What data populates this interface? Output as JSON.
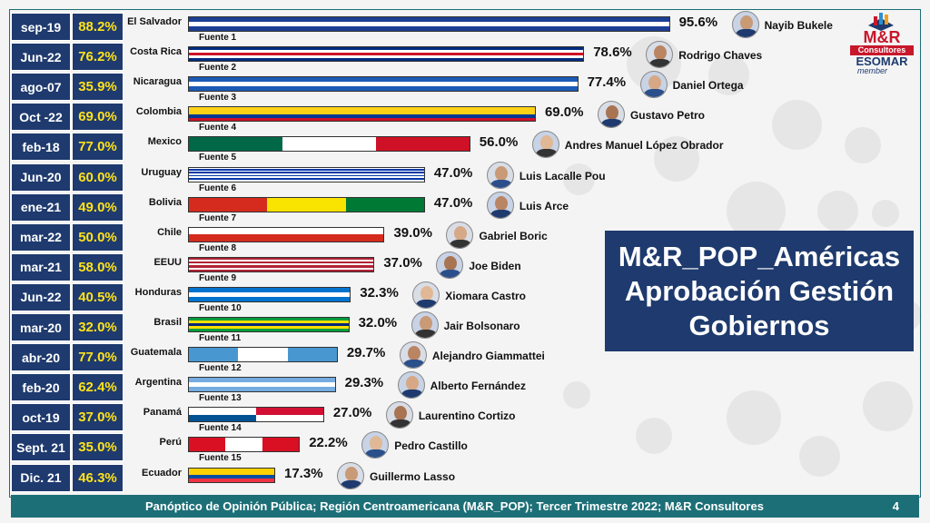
{
  "title_lines": [
    "M&R_POP_Américas",
    "Aprobación Gestión",
    "Gobiernos"
  ],
  "footer_text": "Panóptico de Opinión Pública; Región Centroamericana (M&R_POP); Tercer Trimestre 2022; M&R Consultores",
  "page_number": "4",
  "logo": {
    "main": "M&R",
    "sub": "Consultores",
    "esomar": "ESOMAR",
    "member": "member"
  },
  "colors": {
    "navy": "#1e3a6e",
    "teal": "#1d6f77",
    "yellow": "#ffe21a",
    "logo_red": "#c7172b"
  },
  "chart_data": {
    "type": "bar",
    "orientation": "horizontal",
    "xlim": [
      0,
      100
    ],
    "rows": [
      {
        "date": "sep-19",
        "prev": "88.2%",
        "country": "El Salvador",
        "value": 95.6,
        "label": "95.6%",
        "fuente": "Fuente 1",
        "leader": "Nayib Bukele",
        "flag": [
          "#1c3f94",
          "#ffffff",
          "#1c3f94"
        ]
      },
      {
        "date": "Jun-22",
        "prev": "76.2%",
        "country": "Costa Rica",
        "value": 78.6,
        "label": "78.6%",
        "fuente": "Fuente 2",
        "leader": "Rodrigo Chaves",
        "flag": [
          "#002b7f",
          "#ffffff",
          "#ce1126",
          "#ffffff",
          "#002b7f"
        ]
      },
      {
        "date": "ago-07",
        "prev": "35.9%",
        "country": "Nicaragua",
        "value": 77.4,
        "label": "77.4%",
        "fuente": "Fuente 3",
        "leader": "Daniel Ortega",
        "flag": [
          "#1c5ab5",
          "#ffffff",
          "#1c5ab5"
        ]
      },
      {
        "date": "Oct -22",
        "prev": "69.0%",
        "country": "Colombia",
        "value": 69.0,
        "label": "69.0%",
        "fuente": "Fuente 4",
        "leader": "Gustavo Petro",
        "flag": [
          "#fcd116",
          "#fcd116",
          "#003893",
          "#ce1126"
        ]
      },
      {
        "date": "feb-18",
        "prev": "77.0%",
        "country": "Mexico",
        "value": 56.0,
        "label": "56.0%",
        "fuente": "Fuente 5",
        "leader": "Andres Manuel López Obrador",
        "flag_v": [
          "#006847",
          "#ffffff",
          "#ce1126"
        ]
      },
      {
        "date": "Jun-20",
        "prev": "60.0%",
        "country": "Uruguay",
        "value": 47.0,
        "label": "47.0%",
        "fuente": "Fuente 6",
        "leader": "Luis Lacalle Pou",
        "flag": [
          "#ffffff",
          "#0038a8",
          "#ffffff",
          "#0038a8",
          "#ffffff",
          "#0038a8",
          "#ffffff",
          "#0038a8",
          "#ffffff"
        ]
      },
      {
        "date": "ene-21",
        "prev": "49.0%",
        "country": "Bolivia",
        "value": 47.0,
        "label": "47.0%",
        "fuente": "Fuente 7",
        "leader": "Luis Arce",
        "flag_v": [
          "#d52b1e",
          "#f9e300",
          "#007934"
        ]
      },
      {
        "date": "mar-22",
        "prev": "50.0%",
        "country": "Chile",
        "value": 39.0,
        "label": "39.0%",
        "fuente": "Fuente 8",
        "leader": "Gabriel Boric",
        "flag": [
          "#ffffff",
          "#d52b1e"
        ]
      },
      {
        "date": "mar-21",
        "prev": "58.0%",
        "country": "EEUU",
        "value": 37.0,
        "label": "37.0%",
        "fuente": "Fuente 9",
        "leader": "Joe Biden",
        "flag": [
          "#b22234",
          "#ffffff",
          "#b22234",
          "#ffffff",
          "#b22234",
          "#ffffff",
          "#b22234"
        ]
      },
      {
        "date": "Jun-22",
        "prev": "40.5%",
        "country": "Honduras",
        "value": 32.3,
        "label": "32.3%",
        "fuente": "Fuente 10",
        "leader": "Xiomara Castro",
        "flag": [
          "#0073cf",
          "#ffffff",
          "#0073cf"
        ]
      },
      {
        "date": "mar-20",
        "prev": "32.0%",
        "country": "Brasil",
        "value": 32.0,
        "label": "32.0%",
        "fuente": "Fuente 11",
        "leader": "Jair Bolsonaro",
        "flag": [
          "#009c3b",
          "#ffdf00",
          "#002776",
          "#ffdf00",
          "#009c3b"
        ]
      },
      {
        "date": "abr-20",
        "prev": "77.0%",
        "country": "Guatemala",
        "value": 29.7,
        "label": "29.7%",
        "fuente": "Fuente 12",
        "leader": "Alejandro Giammattei",
        "flag_v": [
          "#4997d0",
          "#ffffff",
          "#4997d0"
        ]
      },
      {
        "date": "feb-20",
        "prev": "62.4%",
        "country": "Argentina",
        "value": 29.3,
        "label": "29.3%",
        "fuente": "Fuente 13",
        "leader": "Alberto Fernández",
        "flag": [
          "#74acdf",
          "#ffffff",
          "#74acdf"
        ]
      },
      {
        "date": "oct-19",
        "prev": "37.0%",
        "country": "Panamá",
        "value": 27.0,
        "label": "27.0%",
        "fuente": "Fuente 14",
        "leader": "Laurentino Cortizo",
        "flag_q": [
          "#ffffff",
          "#d21034",
          "#005293",
          "#ffffff"
        ]
      },
      {
        "date": "Sept. 21",
        "prev": "35.0%",
        "country": "Perú",
        "value": 22.2,
        "label": "22.2%",
        "fuente": "Fuente 15",
        "leader": "Pedro Castillo",
        "flag_v": [
          "#d91023",
          "#ffffff",
          "#d91023"
        ]
      },
      {
        "date": "Dic. 21",
        "prev": "46.3%",
        "country": "Ecuador",
        "value": 17.3,
        "label": "17.3%",
        "fuente": "",
        "leader": "Guillermo Lasso",
        "flag": [
          "#ffd100",
          "#ffd100",
          "#034ea2",
          "#ef3340"
        ]
      }
    ]
  }
}
